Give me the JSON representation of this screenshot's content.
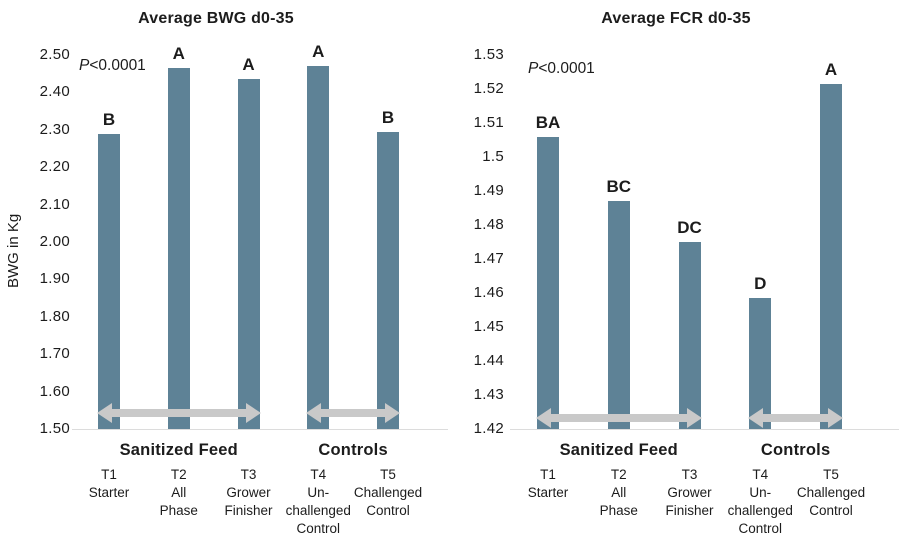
{
  "chart_data": [
    {
      "type": "bar",
      "title": "Average BWG d0-35",
      "p_italic": "P",
      "p_rest": "<0.0001",
      "ylabel": "BWG in Kg",
      "xlabel": "",
      "ylim": [
        1.5,
        2.5
      ],
      "yticks": [
        "2.50",
        "2.40",
        "2.30",
        "2.20",
        "2.10",
        "2.00",
        "1.90",
        "1.80",
        "1.70",
        "1.60",
        "1.50"
      ],
      "grid": false,
      "legend": null,
      "categories": [
        [
          "T1",
          "Starter"
        ],
        [
          "T2",
          "All",
          "Phase"
        ],
        [
          "T3",
          "Grower",
          "Finisher"
        ],
        [
          "T4",
          "Un-",
          "challenged",
          "Control"
        ],
        [
          "T5",
          "Challenged",
          "Control"
        ]
      ],
      "values": [
        2.29,
        2.465,
        2.435,
        2.47,
        2.295
      ],
      "significance_letters": [
        "B",
        "A",
        "A",
        "A",
        "B"
      ],
      "groups": [
        {
          "label": "Sanitized Feed",
          "from": 0,
          "to": 2
        },
        {
          "label": "Controls",
          "from": 3,
          "to": 4
        }
      ],
      "arrow_y_value": 1.543,
      "bar_color": "#5E8296",
      "arrow_color": "#C9C9C9",
      "axis_color": "#DCDCDC"
    },
    {
      "type": "bar",
      "title": "Average FCR d0-35",
      "p_italic": "P",
      "p_rest": "<0.0001",
      "ylabel": "",
      "xlabel": "",
      "ylim": [
        1.42,
        1.53
      ],
      "yticks": [
        "1.53",
        "1.52",
        "1.51",
        "1.5",
        "1.49",
        "1.48",
        "1.47",
        "1.46",
        "1.45",
        "1.44",
        "1.43",
        "1.42"
      ],
      "grid": false,
      "legend": null,
      "categories": [
        [
          "T1",
          "Starter"
        ],
        [
          "T2",
          "All",
          "Phase"
        ],
        [
          "T3",
          "Grower",
          "Finisher"
        ],
        [
          "T4",
          "Un-",
          "challenged",
          "Control"
        ],
        [
          "T5",
          "Challenged",
          "Control"
        ]
      ],
      "values": [
        1.506,
        1.487,
        1.475,
        1.4585,
        1.5215
      ],
      "significance_letters": [
        "BA",
        "BC",
        "DC",
        "D",
        "A"
      ],
      "groups": [
        {
          "label": "Sanitized Feed",
          "from": 0,
          "to": 2
        },
        {
          "label": "Controls",
          "from": 3,
          "to": 4
        }
      ],
      "arrow_y_value": 1.4232,
      "bar_color": "#5E8296",
      "arrow_color": "#C9C9C9",
      "axis_color": "#DCDCDC"
    }
  ]
}
